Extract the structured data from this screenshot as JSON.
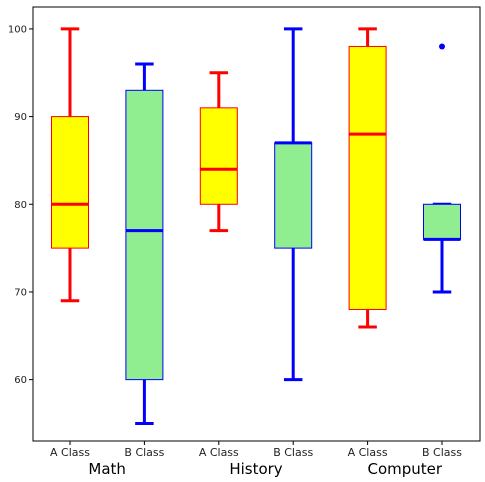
{
  "chart_data": {
    "type": "boxplot",
    "title": "",
    "xlabel": "",
    "ylabel": "",
    "ylim": [
      53,
      102.5
    ],
    "yticks": [
      60,
      70,
      80,
      90,
      100
    ],
    "grid": false,
    "groups": [
      "Math",
      "History",
      "Computer"
    ],
    "categories": [
      "A Class",
      "B Class",
      "A Class",
      "B Class",
      "A Class",
      "B Class"
    ],
    "boxes": [
      {
        "group": "Math",
        "label": "A Class",
        "whisker_low": 69,
        "q1": 75,
        "median": 80,
        "q3": 90,
        "whisker_high": 100,
        "outliers": []
      },
      {
        "group": "Math",
        "label": "B Class",
        "whisker_low": 55,
        "q1": 60,
        "median": 77,
        "q3": 93,
        "whisker_high": 96,
        "outliers": []
      },
      {
        "group": "History",
        "label": "A Class",
        "whisker_low": 77,
        "q1": 80,
        "median": 84,
        "q3": 91,
        "whisker_high": 95,
        "outliers": []
      },
      {
        "group": "History",
        "label": "B Class",
        "whisker_low": 60,
        "q1": 75,
        "median": 87,
        "q3": 87,
        "whisker_high": 100,
        "outliers": []
      },
      {
        "group": "Computer",
        "label": "A Class",
        "whisker_low": 66,
        "q1": 68,
        "median": 88,
        "q3": 98,
        "whisker_high": 100,
        "outliers": []
      },
      {
        "group": "Computer",
        "label": "B Class",
        "whisker_low": 70,
        "q1": 76,
        "median": 76,
        "q3": 80,
        "whisker_high": 80,
        "outliers": [
          98
        ]
      }
    ],
    "styles": {
      "A Class": {
        "box_fill": "#ffff00",
        "box_edge": "#ff0000",
        "line": "#ff0000"
      },
      "B Class": {
        "box_fill": "#90ee90",
        "box_edge": "#0000ff",
        "line": "#0000ff"
      }
    }
  }
}
